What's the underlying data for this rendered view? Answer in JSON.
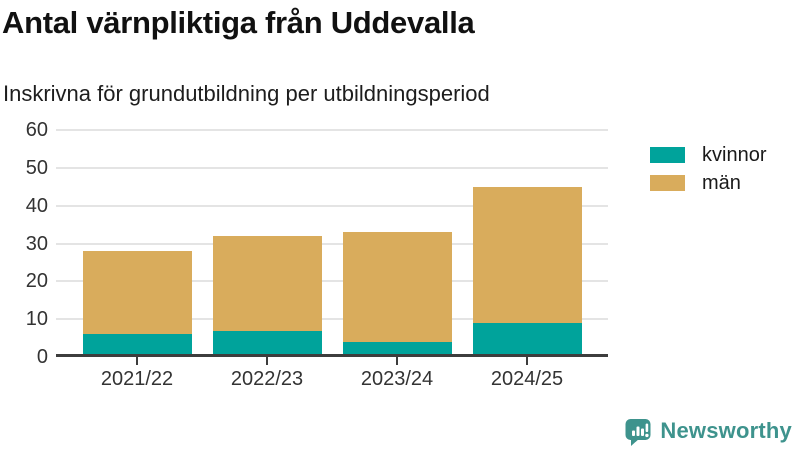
{
  "header": {
    "title": "Antal värnpliktiga från Uddevalla",
    "subtitle": "Inskrivna för grundutbildning per utbildningsperiod"
  },
  "chart_data": {
    "type": "bar",
    "stacked": true,
    "title": "Antal värnpliktiga från Uddevalla",
    "subtitle": "Inskrivna för grundutbildning per utbildningsperiod",
    "categories": [
      "2021/22",
      "2022/23",
      "2023/24",
      "2024/25"
    ],
    "series": [
      {
        "name": "kvinnor",
        "color": "#00a39b",
        "values": [
          6,
          7,
          4,
          9
        ]
      },
      {
        "name": "män",
        "color": "#d9ac5c",
        "values": [
          22,
          25,
          29,
          36
        ]
      }
    ],
    "totals": [
      28,
      32,
      33,
      45
    ],
    "xlabel": "",
    "ylabel": "",
    "ylim": [
      0,
      60
    ],
    "yticks": [
      0,
      10,
      20,
      30,
      40,
      50,
      60
    ],
    "grid": "horizontal",
    "legend_position": "right"
  },
  "branding": {
    "logo_text": "Newsworthy",
    "logo_color": "#3e938d",
    "logo_icon": "newsworthy-chart-bubble-icon"
  },
  "colors": {
    "kvinnor": "#00a39b",
    "man": "#d9ac5c",
    "gridline": "#e4e4e4",
    "axis": "#3d3d3d",
    "text": "#333333"
  }
}
